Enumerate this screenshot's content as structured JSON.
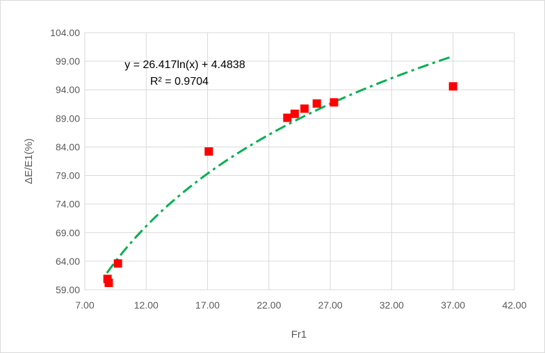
{
  "chart_data": {
    "type": "scatter",
    "title": "",
    "xlabel": "Fr1",
    "ylabel": "ΔE/E1(%)",
    "xlim": [
      7.0,
      42.0
    ],
    "ylim": [
      59.0,
      104.0
    ],
    "xticks": [
      "7.00",
      "12.00",
      "17.00",
      "22.00",
      "27.00",
      "32.00",
      "37.00",
      "42.00"
    ],
    "yticks": [
      "59.00",
      "64.00",
      "69.00",
      "74.00",
      "79.00",
      "84.00",
      "89.00",
      "94.00",
      "99.00",
      "104.00"
    ],
    "grid": true,
    "series": [
      {
        "marker": "square",
        "color": "#ff0000",
        "points": [
          {
            "x": 8.85,
            "y": 60.9
          },
          {
            "x": 8.95,
            "y": 60.2
          },
          {
            "x": 9.7,
            "y": 63.6
          },
          {
            "x": 17.1,
            "y": 83.2
          },
          {
            "x": 23.5,
            "y": 89.1
          },
          {
            "x": 24.1,
            "y": 89.8
          },
          {
            "x": 24.9,
            "y": 90.7
          },
          {
            "x": 25.9,
            "y": 91.6
          },
          {
            "x": 27.3,
            "y": 91.8
          },
          {
            "x": 37.0,
            "y": 94.6
          }
        ]
      }
    ],
    "trendline": {
      "type": "logarithmic",
      "a": 26.417,
      "b": 4.4838,
      "x_range": [
        8.8,
        37.0
      ],
      "color": "#00b050",
      "style": "dash-dot",
      "equation_label": "y = 26.417ln(x) + 4.4838",
      "r2_label": "R² = 0.9704"
    }
  }
}
